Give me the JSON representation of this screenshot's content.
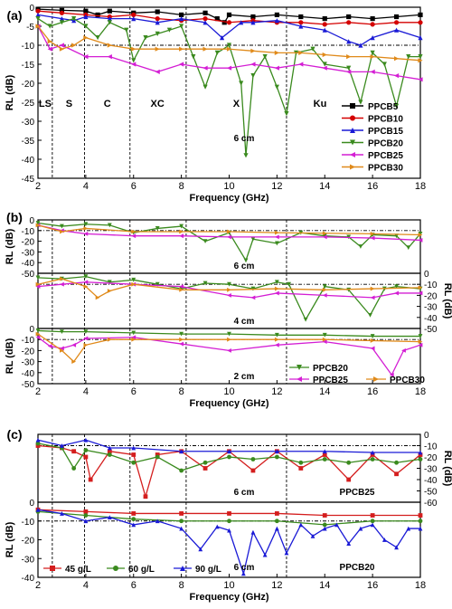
{
  "figure": {
    "panels": [
      {
        "label": "(a)",
        "xlabel": "Frequency (GHz)",
        "ylabel": "RL (dB)",
        "xlim": [
          2,
          18
        ],
        "ylim": [
          -45,
          0
        ],
        "xticks": [
          2,
          4,
          6,
          8,
          10,
          12,
          14,
          16,
          18
        ],
        "yticks": [
          0,
          -5,
          -10,
          -15,
          -20,
          -25,
          -30,
          -35,
          -40,
          -45
        ],
        "band_labels": [
          "LS",
          "S",
          "C",
          "XC",
          "X",
          "Ku"
        ],
        "thickness_label": "6 cm",
        "legend_position": "right"
      },
      {
        "label": "(b)",
        "xlabel": "Frequency (GHz)",
        "xticks": [
          2,
          4,
          6,
          8,
          10,
          12,
          14,
          16,
          18
        ],
        "legend_position": "bottom-right",
        "subplots": [
          {
            "ylabel": "RL (dB)",
            "axis_side": "left",
            "ylim": [
              -50,
              0
            ],
            "yticks": [
              0,
              -10,
              -20,
              -30,
              -40,
              -50
            ],
            "thickness_label": "6 cm"
          },
          {
            "ylabel": "RL (dB)",
            "axis_side": "right",
            "ylim": [
              -50,
              0
            ],
            "yticks": [
              0,
              -10,
              -20,
              -30,
              -40,
              -50
            ],
            "thickness_label": "4 cm"
          },
          {
            "ylabel": "RL (dB)",
            "axis_side": "left",
            "ylim": [
              -50,
              0
            ],
            "yticks": [
              0,
              -10,
              -20,
              -30,
              -40,
              -50
            ],
            "thickness_label": "2 cm"
          }
        ]
      },
      {
        "label": "(c)",
        "xlabel": "Frequency (GHz)",
        "xticks": [
          2,
          4,
          6,
          8,
          10,
          12,
          14,
          16,
          18
        ],
        "legend_position": "bottom-left",
        "subplots": [
          {
            "ylabel": "RL (dB)",
            "axis_side": "right",
            "ylim": [
              -60,
              0
            ],
            "yticks": [
              0,
              -10,
              -20,
              -30,
              -40,
              -50,
              -60
            ],
            "thickness_label": "6 cm",
            "sample_label": "PPCB25"
          },
          {
            "ylabel": "RL (dB)",
            "axis_side": "left",
            "ylim": [
              -40,
              0
            ],
            "yticks": [
              0,
              -10,
              -20,
              -30,
              -40
            ],
            "thickness_label": "6 cm",
            "sample_label": "PPCB20"
          }
        ]
      }
    ],
    "band_edges_ghz": [
      2.6,
      3.95,
      5.85,
      8.2,
      12.4
    ],
    "reference_level_db": -10
  },
  "chart_data": [
    {
      "type": "line",
      "panel": "(a)",
      "title": "",
      "xlabel": "Frequency (GHz)",
      "ylabel": "RL (dB)",
      "xlim": [
        2,
        18
      ],
      "ylim": [
        -45,
        0
      ],
      "grid": false,
      "legend": "right",
      "series": [
        {
          "name": "PPCB5",
          "color": "#000000",
          "marker": "square",
          "x": [
            2,
            3,
            4,
            4.5,
            5,
            6,
            7,
            8,
            9,
            9.5,
            9.8,
            10,
            11,
            12,
            13,
            14,
            15,
            16,
            17,
            18
          ],
          "y": [
            -0.5,
            -0.8,
            -1,
            -2,
            -1,
            -1.5,
            -1.2,
            -2,
            -1.5,
            -3,
            -4,
            -2,
            -2.5,
            -2,
            -2.5,
            -3,
            -2.5,
            -3,
            -2.5,
            -2
          ]
        },
        {
          "name": "PPCB10",
          "color": "#d40000",
          "marker": "circle",
          "x": [
            2,
            3,
            4,
            5,
            6,
            7,
            8,
            9,
            10,
            11,
            12,
            13,
            14,
            15,
            16,
            17,
            18
          ],
          "y": [
            -1,
            -1.5,
            -2,
            -2.5,
            -2,
            -3,
            -3.5,
            -3,
            -4,
            -3.5,
            -4,
            -4,
            -4.5,
            -4,
            -4.5,
            -4,
            -4
          ]
        },
        {
          "name": "PPCB15",
          "color": "#1a1ad6",
          "marker": "triangle-up",
          "x": [
            2,
            3,
            3.5,
            4,
            5,
            6,
            7,
            8,
            9,
            9.7,
            10.5,
            11,
            12,
            13,
            14,
            15,
            15.5,
            16,
            17,
            18
          ],
          "y": [
            -2,
            -3,
            -3.5,
            -2.5,
            -3,
            -3,
            -4,
            -3,
            -4,
            -8,
            -4,
            -4,
            -3.5,
            -5,
            -6,
            -9,
            -10,
            -8,
            -6,
            -8
          ]
        },
        {
          "name": "PPCB20",
          "color": "#3a8a1e",
          "marker": "triangle-down",
          "x": [
            2,
            2.5,
            3,
            3.5,
            4,
            4.5,
            5,
            5.7,
            6,
            6.5,
            7,
            7.5,
            8,
            8.5,
            9,
            9.5,
            10,
            10.5,
            10.7,
            11,
            11.5,
            12,
            12.4,
            12.8,
            13.5,
            14,
            15,
            15.5,
            16,
            16.5,
            17,
            17.5,
            18
          ],
          "y": [
            -3,
            -5,
            -4,
            -3,
            -5,
            -8,
            -4,
            -6,
            -14,
            -8,
            -7,
            -6,
            -5,
            -13,
            -21,
            -12,
            -10,
            -20,
            -39,
            -18,
            -13,
            -21,
            -28,
            -12,
            -11,
            -15,
            -16,
            -25,
            -12,
            -15,
            -26,
            -13,
            -13
          ]
        },
        {
          "name": "PPCB25",
          "color": "#d41ed4",
          "marker": "triangle-left",
          "x": [
            2,
            2.5,
            3,
            4,
            5,
            6,
            7,
            8,
            9,
            10,
            11,
            12,
            13,
            14,
            15,
            16,
            17,
            18
          ],
          "y": [
            -5,
            -11,
            -10,
            -13,
            -13,
            -15,
            -17,
            -15,
            -16,
            -16,
            -15,
            -16,
            -15,
            -16,
            -17,
            -17,
            -18,
            -19
          ]
        },
        {
          "name": "PPCB30",
          "color": "#e08a1a",
          "marker": "triangle-right",
          "x": [
            2,
            2.5,
            3,
            3.5,
            4,
            5,
            6,
            7,
            8,
            9,
            10,
            11,
            12,
            13,
            14,
            15,
            16,
            17,
            18
          ],
          "y": [
            -5,
            -9,
            -11,
            -10,
            -8,
            -10,
            -11,
            -11,
            -11,
            -11,
            -11,
            -11.5,
            -12,
            -12,
            -12.5,
            -13,
            -13,
            -13.5,
            -14
          ]
        }
      ]
    },
    {
      "type": "line",
      "panel": "(b) 6 cm",
      "xlabel": "Frequency (GHz)",
      "ylabel": "RL (dB)",
      "xlim": [
        2,
        18
      ],
      "ylim": [
        -50,
        0
      ],
      "grid": false,
      "series": [
        {
          "name": "PPCB20",
          "color": "#3a8a1e",
          "marker": "triangle-down",
          "x": [
            2,
            3,
            4,
            5,
            6,
            7,
            8,
            9,
            10,
            10.7,
            11,
            12,
            13,
            14,
            15,
            15.5,
            16,
            17,
            17.5,
            18
          ],
          "y": [
            -3,
            -6,
            -4,
            -5,
            -12,
            -8,
            -6,
            -20,
            -12,
            -38,
            -18,
            -22,
            -12,
            -15,
            -16,
            -25,
            -14,
            -15,
            -26,
            -13
          ]
        },
        {
          "name": "PPCB25",
          "color": "#d41ed4",
          "marker": "triangle-left",
          "x": [
            2,
            3,
            4,
            6,
            8,
            10,
            12,
            14,
            16,
            18
          ],
          "y": [
            -5,
            -10,
            -13,
            -15,
            -15,
            -16,
            -16,
            -16,
            -17,
            -19
          ]
        },
        {
          "name": "PPCB30",
          "color": "#e08a1a",
          "marker": "triangle-right",
          "x": [
            2,
            3,
            4,
            6,
            8,
            10,
            12,
            14,
            16,
            18
          ],
          "y": [
            -5,
            -11,
            -8,
            -11,
            -11,
            -11,
            -12,
            -12.5,
            -13,
            -14
          ]
        }
      ]
    },
    {
      "type": "line",
      "panel": "(b) 4 cm",
      "xlabel": "Frequency (GHz)",
      "ylabel": "RL (dB)",
      "xlim": [
        2,
        18
      ],
      "ylim": [
        -50,
        0
      ],
      "grid": false,
      "series": [
        {
          "name": "PPCB20",
          "color": "#3a8a1e",
          "marker": "triangle-down",
          "x": [
            2,
            3,
            4,
            5,
            6,
            7,
            8,
            9,
            10,
            11,
            12,
            12.5,
            13.2,
            14,
            15,
            15.9,
            16.5,
            17,
            18
          ],
          "y": [
            -4,
            -5,
            -3,
            -8,
            -6,
            -10,
            -14,
            -9,
            -10,
            -14,
            -8,
            -10,
            -42,
            -12,
            -15,
            -38,
            -14,
            -12,
            -14
          ]
        },
        {
          "name": "PPCB25",
          "color": "#d41ed4",
          "marker": "triangle-left",
          "x": [
            2,
            3,
            4,
            6,
            8,
            10,
            11,
            12,
            14,
            16,
            17,
            18
          ],
          "y": [
            -12,
            -10,
            -8,
            -10,
            -12,
            -20,
            -22,
            -18,
            -20,
            -22,
            -18,
            -18
          ]
        },
        {
          "name": "PPCB30",
          "color": "#e08a1a",
          "marker": "triangle-right",
          "x": [
            2,
            3,
            4,
            4.5,
            5,
            6,
            8,
            10,
            12,
            14,
            16,
            18
          ],
          "y": [
            -10,
            -5,
            -12,
            -22,
            -16,
            -10,
            -15,
            -15,
            -14,
            -15,
            -14,
            -13
          ]
        }
      ]
    },
    {
      "type": "line",
      "panel": "(b) 2 cm",
      "xlabel": "Frequency (GHz)",
      "ylabel": "RL (dB)",
      "xlim": [
        2,
        18
      ],
      "ylim": [
        -50,
        0
      ],
      "grid": false,
      "legend": "bottom-right",
      "series": [
        {
          "name": "PPCB20",
          "color": "#3a8a1e",
          "marker": "triangle-down",
          "x": [
            2,
            3,
            4,
            6,
            8,
            10,
            12,
            14,
            16,
            18
          ],
          "y": [
            -2,
            -3,
            -3,
            -4,
            -5,
            -5,
            -6,
            -6,
            -7,
            -7
          ]
        },
        {
          "name": "PPCB25",
          "color": "#d41ed4",
          "marker": "triangle-left",
          "x": [
            2,
            2.5,
            3,
            3.5,
            4,
            6,
            8,
            10,
            12,
            14,
            16,
            16.8,
            17.3,
            18
          ],
          "y": [
            -8,
            -16,
            -18,
            -15,
            -9,
            -8,
            -14,
            -20,
            -15,
            -12,
            -18,
            -42,
            -20,
            -15
          ]
        },
        {
          "name": "PPCB30",
          "color": "#e08a1a",
          "marker": "triangle-right",
          "x": [
            2,
            3,
            3.5,
            4,
            5,
            6,
            8,
            10,
            12,
            14,
            16,
            18
          ],
          "y": [
            -5,
            -20,
            -30,
            -15,
            -10,
            -10,
            -10,
            -10,
            -10,
            -10,
            -11,
            -12
          ]
        }
      ]
    },
    {
      "type": "line",
      "panel": "(c) PPCB25",
      "xlabel": "Frequency (GHz)",
      "ylabel": "RL (dB)",
      "xlim": [
        2,
        18
      ],
      "ylim": [
        -60,
        0
      ],
      "grid": false,
      "series": [
        {
          "name": "45 g/L",
          "color": "#d41e1e",
          "marker": "square",
          "x": [
            2,
            3,
            3.5,
            4,
            4.2,
            5,
            6,
            6.5,
            7,
            8,
            9,
            10,
            11,
            12,
            13,
            14,
            15,
            16,
            17,
            18
          ],
          "y": [
            -10,
            -12,
            -15,
            -20,
            -40,
            -15,
            -18,
            -55,
            -18,
            -15,
            -30,
            -15,
            -32,
            -15,
            -30,
            -18,
            -40,
            -18,
            -35,
            -18
          ]
        },
        {
          "name": "60 g/L",
          "color": "#3a8a1e",
          "marker": "circle",
          "x": [
            2,
            3,
            3.5,
            4,
            5,
            6,
            7,
            8,
            9,
            10,
            11,
            12,
            13,
            14,
            15,
            16,
            17,
            18
          ],
          "y": [
            -8,
            -12,
            -30,
            -14,
            -18,
            -25,
            -20,
            -32,
            -25,
            -20,
            -22,
            -20,
            -25,
            -22,
            -25,
            -22,
            -25,
            -22
          ]
        },
        {
          "name": "90 g/L",
          "color": "#1a1ad6",
          "marker": "triangle-up",
          "x": [
            2,
            3,
            4,
            5,
            6,
            8,
            10,
            12,
            14,
            16,
            18
          ],
          "y": [
            -5,
            -10,
            -5,
            -12,
            -12,
            -15,
            -15,
            -15,
            -15,
            -16,
            -16
          ]
        }
      ]
    },
    {
      "type": "line",
      "panel": "(c) PPCB20",
      "xlabel": "Frequency (GHz)",
      "ylabel": "RL (dB)",
      "xlim": [
        2,
        18
      ],
      "ylim": [
        -40,
        0
      ],
      "grid": false,
      "legend": "bottom-left",
      "series": [
        {
          "name": "45 g/L",
          "color": "#d41e1e",
          "marker": "square",
          "x": [
            2,
            4,
            6,
            8,
            10,
            12,
            14,
            16,
            18
          ],
          "y": [
            -4,
            -5,
            -6,
            -6,
            -6,
            -6,
            -7,
            -7,
            -7
          ]
        },
        {
          "name": "60 g/L",
          "color": "#3a8a1e",
          "marker": "circle",
          "x": [
            2,
            4,
            6,
            8,
            10,
            12,
            14,
            16,
            18
          ],
          "y": [
            -5,
            -7,
            -9,
            -10,
            -10,
            -10,
            -12,
            -10,
            -10
          ]
        },
        {
          "name": "90 g/L",
          "color": "#1a1ad6",
          "marker": "triangle-up",
          "x": [
            2,
            3,
            4,
            5,
            6,
            7,
            8,
            8.8,
            9.5,
            10,
            10.6,
            11,
            11.5,
            12,
            12.4,
            13,
            13.5,
            14,
            14.5,
            15,
            15.5,
            16,
            16.5,
            17,
            17.5,
            18
          ],
          "y": [
            -4,
            -6,
            -10,
            -8,
            -12,
            -10,
            -14,
            -25,
            -13,
            -15,
            -38,
            -16,
            -28,
            -14,
            -27,
            -12,
            -18,
            -14,
            -12,
            -22,
            -14,
            -12,
            -20,
            -24,
            -14,
            -14
          ]
        }
      ]
    }
  ]
}
